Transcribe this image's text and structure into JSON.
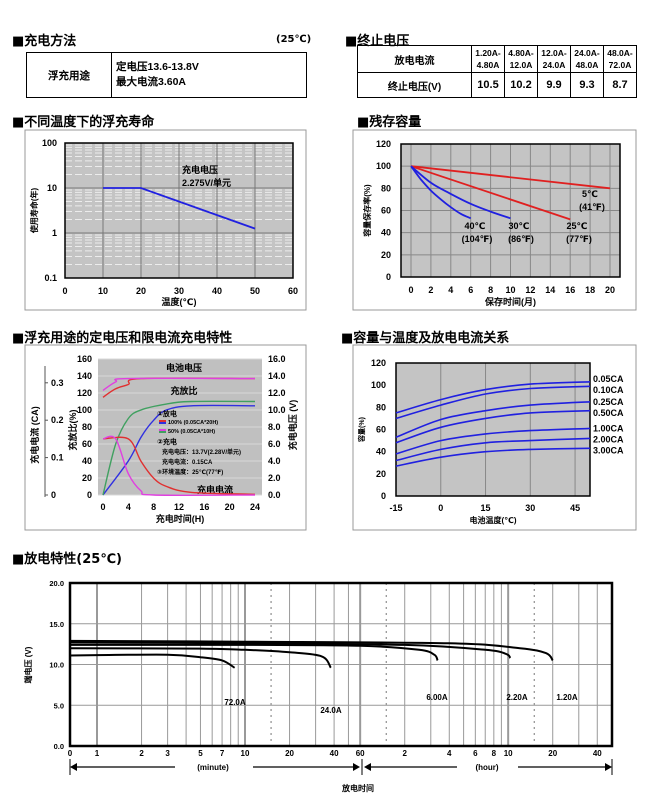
{
  "charging_method": {
    "title": "■充电方法",
    "note": "(25℃)",
    "row_label": "浮充用途",
    "lines": [
      "定电压13.6-13.8V",
      "最大电流3.60A"
    ]
  },
  "cutoff_voltage": {
    "title": "■终止电压",
    "header_label": "放电电流",
    "ranges": [
      [
        "1.20A-",
        "4.80A"
      ],
      [
        "4.80A-",
        "12.0A"
      ],
      [
        "12.0A-",
        "24.0A"
      ],
      [
        "24.0A-",
        "48.0A"
      ],
      [
        "48.0A-",
        "72.0A"
      ]
    ],
    "row_label": "终止电压(V)",
    "values": [
      "10.5",
      "10.2",
      "9.9",
      "9.3",
      "8.7"
    ]
  },
  "chart_data": [
    {
      "type": "line",
      "title": "■不同温度下的浮充寿命",
      "xlabel": "温度(℃)",
      "ylabel": "使用寿命(年)",
      "xlim": [
        0,
        60
      ],
      "ylim": [
        0.1,
        100
      ],
      "yscale": "log",
      "grid": true,
      "xticks": [
        "0",
        "10",
        "20",
        "30",
        "40",
        "50",
        "60"
      ],
      "yticks": [
        "0.1",
        "1",
        "10",
        "100"
      ],
      "annotation": [
        "充电电压",
        "2.275V/单元"
      ],
      "series": [
        {
          "x": [
            10,
            20,
            50
          ],
          "y": [
            10,
            10,
            1.25
          ],
          "color": "#2020e0"
        }
      ]
    },
    {
      "type": "line",
      "title": "■残存容量",
      "xlabel": "保存时间(月)",
      "ylabel": "容量保存率(%)",
      "xlim": [
        0,
        20
      ],
      "ylim": [
        0,
        120
      ],
      "grid": true,
      "xticks": [
        "0",
        "2",
        "4",
        "6",
        "8",
        "10",
        "12",
        "14",
        "16",
        "18",
        "20"
      ],
      "yticks": [
        "0",
        "20",
        "40",
        "60",
        "80",
        "100",
        "120"
      ],
      "series": [
        {
          "label": [
            "5℃",
            "(41℉)"
          ],
          "color": "#e02020",
          "x": [
            0,
            20
          ],
          "y": [
            100,
            80
          ]
        },
        {
          "label": [
            "25℃",
            "(77℉)"
          ],
          "color": "#e02020",
          "x": [
            0,
            16
          ],
          "y": [
            100,
            52
          ]
        },
        {
          "label": [
            "30℃",
            "(86℉)"
          ],
          "color": "#2020e0",
          "x": [
            0,
            2,
            4,
            6,
            8,
            10
          ],
          "y": [
            100,
            85,
            75,
            66,
            59,
            53
          ]
        },
        {
          "label": [
            "40℃",
            "(104℉)"
          ],
          "color": "#2020e0",
          "x": [
            0,
            1,
            2,
            3,
            4,
            5,
            6
          ],
          "y": [
            100,
            88,
            78,
            70,
            63,
            57,
            53
          ]
        }
      ]
    },
    {
      "type": "line",
      "title": "■浮充用途的定电压和限电流充电特性",
      "xlabel": "充电时间(H)",
      "ylabel_current": "充电电流 (CA)",
      "ylabel_ratio": "充放比(%)",
      "ylabel_voltage": "充电电压 (V)",
      "xlim": [
        0,
        24
      ],
      "ylim_ratio": [
        0,
        160
      ],
      "ylim_voltage": [
        0,
        16
      ],
      "xticks": [
        "0",
        "4",
        "8",
        "12",
        "16",
        "20",
        "24"
      ],
      "yticks_ratio": [
        "0",
        "20",
        "40",
        "60",
        "80",
        "100",
        "120",
        "140",
        "160"
      ],
      "yticks_current": [
        "0",
        "0.1",
        "0.2",
        "0.3"
      ],
      "yticks_voltage": [
        "0.0",
        "2.0",
        "4.0",
        "6.0",
        "8.0",
        "10.0",
        "12.0",
        "14.0",
        "16.0"
      ],
      "region_labels": {
        "voltage": "电池电压",
        "ratio": "充放比",
        "current": "充电电流"
      },
      "legend": {
        "discharge_heading": "①放电",
        "items": [
          {
            "label": "100% (0.05CA*20H)",
            "colors": [
              "#e03030",
              "#3030e0"
            ]
          },
          {
            "label": "50% (0.05CA*10H)",
            "colors": [
              "#e040e0",
              "#40a060"
            ]
          }
        ],
        "charge_heading": "②充电",
        "charge_voltage": "充电电压：13.7V(2.28V/单元)",
        "charge_current": "充电电流：0.15CA",
        "temperature": "③环境温度：25℃(77℉)"
      },
      "series": [
        {
          "quantity": "voltage",
          "unit": "V",
          "discharge": "100%",
          "color": "#e03030",
          "x": [
            0,
            2,
            4,
            6,
            24
          ],
          "y": [
            11.5,
            12.5,
            13.0,
            13.7,
            13.7
          ]
        },
        {
          "quantity": "voltage",
          "unit": "V",
          "discharge": "50%",
          "color": "#e040e0",
          "x": [
            0,
            2,
            4,
            24
          ],
          "y": [
            12.3,
            13.3,
            13.7,
            13.7
          ]
        },
        {
          "quantity": "ratio",
          "unit": "%",
          "discharge": "100%",
          "color": "#3030e0",
          "x": [
            0,
            4,
            6,
            8,
            10,
            14,
            24
          ],
          "y": [
            0,
            40,
            68,
            88,
            100,
            105,
            105
          ]
        },
        {
          "quantity": "ratio",
          "unit": "%",
          "discharge": "50%",
          "color": "#40a060",
          "x": [
            0,
            2,
            4,
            6,
            10,
            14,
            24
          ],
          "y": [
            0,
            60,
            90,
            100,
            107,
            110,
            110
          ]
        },
        {
          "quantity": "current",
          "unit": "CA",
          "discharge": "100%",
          "color": "#e03030",
          "x": [
            0,
            4,
            6,
            8,
            10,
            14,
            24
          ],
          "y": [
            0.15,
            0.15,
            0.09,
            0.045,
            0.023,
            0.007,
            0.002
          ]
        },
        {
          "quantity": "current",
          "unit": "CA",
          "discharge": "50%",
          "color": "#e040e0",
          "x": [
            0,
            2,
            4,
            6,
            8,
            24
          ],
          "y": [
            0.15,
            0.15,
            0.057,
            0.011,
            0.0,
            0.0
          ]
        }
      ]
    },
    {
      "type": "line",
      "title": "■容量与温度及放电电流关系",
      "xlabel": "电池温度(℃)",
      "ylabel": "容量(%)",
      "xlim": [
        -15,
        50
      ],
      "ylim": [
        0,
        120
      ],
      "xticks": [
        "-15",
        "0",
        "15",
        "30",
        "45"
      ],
      "yticks": [
        "0",
        "20",
        "40",
        "60",
        "80",
        "100",
        "120"
      ],
      "series": [
        {
          "name": "0.05CA",
          "x": [
            -15,
            0,
            15,
            30,
            50
          ],
          "y": [
            75,
            87,
            96,
            101,
            103
          ]
        },
        {
          "name": "0.10CA",
          "x": [
            -15,
            0,
            15,
            30,
            50
          ],
          "y": [
            70,
            82,
            92,
            97,
            99
          ]
        },
        {
          "name": "0.25CA",
          "x": [
            -15,
            0,
            15,
            30,
            50
          ],
          "y": [
            53,
            69,
            77,
            82,
            85
          ]
        },
        {
          "name": "0.50CA",
          "x": [
            -15,
            0,
            15,
            30,
            50
          ],
          "y": [
            48,
            62,
            70,
            75,
            77
          ]
        },
        {
          "name": "1.00CA",
          "x": [
            -15,
            0,
            15,
            30,
            50
          ],
          "y": [
            38,
            50,
            56,
            59,
            61
          ]
        },
        {
          "name": "2.00CA",
          "x": [
            -15,
            0,
            15,
            30,
            50
          ],
          "y": [
            32,
            42,
            48,
            50,
            52
          ]
        },
        {
          "name": "3.00CA",
          "x": [
            -15,
            0,
            15,
            30,
            50
          ],
          "y": [
            27,
            35,
            40,
            42,
            43
          ]
        }
      ],
      "color": "#2020e0"
    },
    {
      "type": "line",
      "title": "■放电特性(25℃)",
      "xlabel": "放电时间",
      "ylabel": "端电压 (V)",
      "xscale": "log",
      "ylim": [
        0,
        20
      ],
      "yticks": [
        "0.0",
        "5.0",
        "10.0",
        "15.0",
        "20.0"
      ],
      "xticks_minute": [
        "0",
        "1",
        "2",
        "3",
        "5",
        "7",
        "10",
        "20",
        "40",
        "60"
      ],
      "xticks_hour": [
        "2",
        "4",
        "6",
        "8",
        "10",
        "20",
        "40"
      ],
      "unit_minute": "(minute)",
      "unit_hour": "(hour)",
      "series": [
        {
          "name": "72.0A",
          "x_minutes": [
            0,
            1,
            3,
            5,
            7,
            8.5
          ],
          "y": [
            11.1,
            11.15,
            11.2,
            10.9,
            10.5,
            9.6
          ]
        },
        {
          "name": "24.0A",
          "x_minutes": [
            0,
            5,
            10,
            20,
            33,
            38
          ],
          "y": [
            12.0,
            11.95,
            11.8,
            11.5,
            11.0,
            9.6
          ]
        },
        {
          "name": "6.00A",
          "x_minutes": [
            0,
            10,
            60,
            150,
            190,
            200
          ],
          "y": [
            12.4,
            12.4,
            12.3,
            11.8,
            11.2,
            10.5
          ]
        },
        {
          "name": "2.20A",
          "x_minutes": [
            0,
            10,
            120,
            420,
            580,
            620
          ],
          "y": [
            12.7,
            12.6,
            12.4,
            11.8,
            11.3,
            10.8
          ]
        },
        {
          "name": "1.20A",
          "x_minutes": [
            0,
            10,
            240,
            720,
            1080,
            1200
          ],
          "y": [
            12.9,
            12.8,
            12.6,
            12.0,
            11.4,
            10.5
          ]
        }
      ]
    }
  ]
}
